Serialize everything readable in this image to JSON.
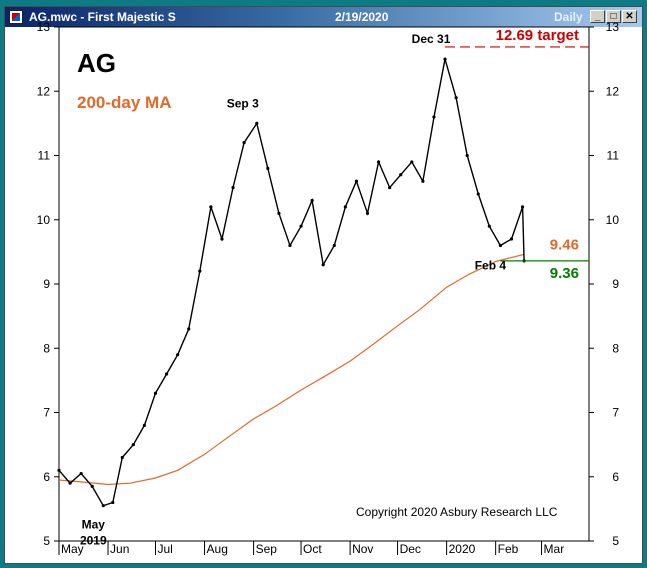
{
  "window": {
    "title": "AG.mwc - First Majestic S",
    "date": "2/19/2020",
    "frequency": "Daily",
    "buttons": {
      "minimize": "_",
      "maximize": "□",
      "close": "✕"
    }
  },
  "colors": {
    "price": "#000000",
    "ma": "#e06a2a",
    "target": "#cc0000",
    "support": "#008000",
    "background": "#ffffff",
    "frame": "#0e7a83"
  },
  "chart_data": {
    "type": "line",
    "title": "AG",
    "subtitle": "200-day MA",
    "xlabel": "",
    "ylabel": "",
    "ylim": [
      5,
      13
    ],
    "yticks": [
      5,
      6,
      7,
      8,
      9,
      10,
      11,
      12,
      13
    ],
    "date_range": [
      "2019-05-01",
      "2020-03-31"
    ],
    "month_labels": [
      {
        "label": "May",
        "date": "2019-05-01"
      },
      {
        "label": "Jun",
        "date": "2019-06-01"
      },
      {
        "label": "Jul",
        "date": "2019-07-01"
      },
      {
        "label": "Aug",
        "date": "2019-08-01"
      },
      {
        "label": "Sep",
        "date": "2019-09-01"
      },
      {
        "label": "Oct",
        "date": "2019-10-01"
      },
      {
        "label": "Nov",
        "date": "2019-11-01"
      },
      {
        "label": "Dec",
        "date": "2019-12-01"
      },
      {
        "label": "2020",
        "date": "2020-01-01"
      },
      {
        "label": "Feb",
        "date": "2020-02-01"
      },
      {
        "label": "Mar",
        "date": "2020-03-01"
      }
    ],
    "series": [
      {
        "kind": "price",
        "points": [
          {
            "x": "2019-05-01",
            "y": 6.1
          },
          {
            "x": "2019-05-08",
            "y": 5.9
          },
          {
            "x": "2019-05-15",
            "y": 6.05
          },
          {
            "x": "2019-05-22",
            "y": 5.85
          },
          {
            "x": "2019-05-29",
            "y": 5.55
          },
          {
            "x": "2019-06-04",
            "y": 5.6
          },
          {
            "x": "2019-06-10",
            "y": 6.3
          },
          {
            "x": "2019-06-17",
            "y": 6.5
          },
          {
            "x": "2019-06-24",
            "y": 6.8
          },
          {
            "x": "2019-07-01",
            "y": 7.3
          },
          {
            "x": "2019-07-08",
            "y": 7.6
          },
          {
            "x": "2019-07-15",
            "y": 7.9
          },
          {
            "x": "2019-07-22",
            "y": 8.3
          },
          {
            "x": "2019-07-29",
            "y": 9.2
          },
          {
            "x": "2019-08-05",
            "y": 10.2
          },
          {
            "x": "2019-08-12",
            "y": 9.7
          },
          {
            "x": "2019-08-19",
            "y": 10.5
          },
          {
            "x": "2019-08-26",
            "y": 11.2
          },
          {
            "x": "2019-09-03",
            "y": 11.5
          },
          {
            "x": "2019-09-10",
            "y": 10.8
          },
          {
            "x": "2019-09-17",
            "y": 10.1
          },
          {
            "x": "2019-09-24",
            "y": 9.6
          },
          {
            "x": "2019-10-01",
            "y": 9.9
          },
          {
            "x": "2019-10-08",
            "y": 10.3
          },
          {
            "x": "2019-10-15",
            "y": 9.3
          },
          {
            "x": "2019-10-22",
            "y": 9.6
          },
          {
            "x": "2019-10-29",
            "y": 10.2
          },
          {
            "x": "2019-11-05",
            "y": 10.6
          },
          {
            "x": "2019-11-12",
            "y": 10.1
          },
          {
            "x": "2019-11-19",
            "y": 10.9
          },
          {
            "x": "2019-11-26",
            "y": 10.5
          },
          {
            "x": "2019-12-03",
            "y": 10.7
          },
          {
            "x": "2019-12-10",
            "y": 10.9
          },
          {
            "x": "2019-12-17",
            "y": 10.6
          },
          {
            "x": "2019-12-24",
            "y": 11.6
          },
          {
            "x": "2019-12-31",
            "y": 12.5
          },
          {
            "x": "2020-01-07",
            "y": 11.9
          },
          {
            "x": "2020-01-14",
            "y": 11.0
          },
          {
            "x": "2020-01-21",
            "y": 10.4
          },
          {
            "x": "2020-01-28",
            "y": 9.9
          },
          {
            "x": "2020-02-04",
            "y": 9.6
          },
          {
            "x": "2020-02-11",
            "y": 9.7
          },
          {
            "x": "2020-02-18",
            "y": 10.2
          },
          {
            "x": "2020-02-19",
            "y": 9.36
          }
        ]
      },
      {
        "kind": "ma",
        "points": [
          {
            "x": "2019-05-01",
            "y": 5.95
          },
          {
            "x": "2019-05-15",
            "y": 5.92
          },
          {
            "x": "2019-06-01",
            "y": 5.88
          },
          {
            "x": "2019-06-15",
            "y": 5.9
          },
          {
            "x": "2019-07-01",
            "y": 5.98
          },
          {
            "x": "2019-07-15",
            "y": 6.1
          },
          {
            "x": "2019-08-01",
            "y": 6.35
          },
          {
            "x": "2019-08-15",
            "y": 6.6
          },
          {
            "x": "2019-09-01",
            "y": 6.9
          },
          {
            "x": "2019-09-15",
            "y": 7.1
          },
          {
            "x": "2019-10-01",
            "y": 7.35
          },
          {
            "x": "2019-10-15",
            "y": 7.55
          },
          {
            "x": "2019-11-01",
            "y": 7.8
          },
          {
            "x": "2019-11-15",
            "y": 8.05
          },
          {
            "x": "2019-12-01",
            "y": 8.35
          },
          {
            "x": "2019-12-15",
            "y": 8.6
          },
          {
            "x": "2020-01-01",
            "y": 8.95
          },
          {
            "x": "2020-01-15",
            "y": 9.15
          },
          {
            "x": "2020-02-01",
            "y": 9.35
          },
          {
            "x": "2020-02-19",
            "y": 9.46
          }
        ]
      }
    ],
    "annotations": {
      "target": {
        "label": "12.69 target",
        "value": 12.69,
        "from": "2019-12-31"
      },
      "ma_value": {
        "label": "9.46",
        "value": 9.46
      },
      "support": {
        "label": "9.36",
        "value": 9.36,
        "from": "2020-02-04"
      },
      "events": [
        {
          "label": "Sep 3",
          "x": "2019-09-03",
          "y": 11.5
        },
        {
          "label": "Dec 31",
          "x": "2019-12-31",
          "y": 12.5
        },
        {
          "label": "Feb 4",
          "x": "2020-02-04",
          "y": 9.6
        },
        {
          "label": "May",
          "sublabel": "2019",
          "x": "2019-05-29",
          "y": 5.55
        }
      ],
      "copyright": "Copyright 2020 Asbury Research LLC"
    }
  }
}
